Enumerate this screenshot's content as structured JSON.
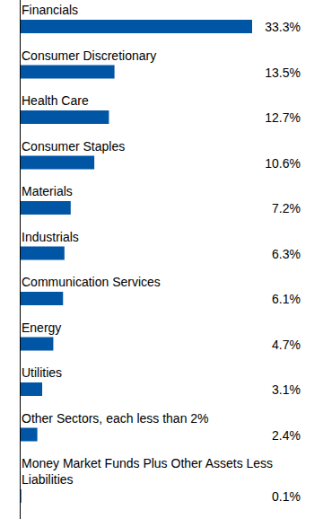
{
  "chart_data": {
    "type": "bar",
    "orientation": "horizontal",
    "categories": [
      "Financials",
      "Consumer Discretionary",
      "Health Care",
      "Consumer Staples",
      "Materials",
      "Industrials",
      "Communication Services",
      "Energy",
      "Utilities",
      "Other Sectors, each less than 2%",
      "Money Market Funds Plus Other Assets Less Liabilities"
    ],
    "values": [
      33.3,
      13.5,
      12.7,
      10.6,
      7.2,
      6.3,
      6.1,
      4.7,
      3.1,
      2.4,
      0.1
    ],
    "value_labels": [
      "33.3%",
      "13.5%",
      "12.7%",
      "10.6%",
      "7.2%",
      "6.3%",
      "6.1%",
      "4.7%",
      "3.1%",
      "2.4%",
      "0.1%"
    ],
    "color": "#0055a5",
    "data_labels": true,
    "grid": false
  }
}
